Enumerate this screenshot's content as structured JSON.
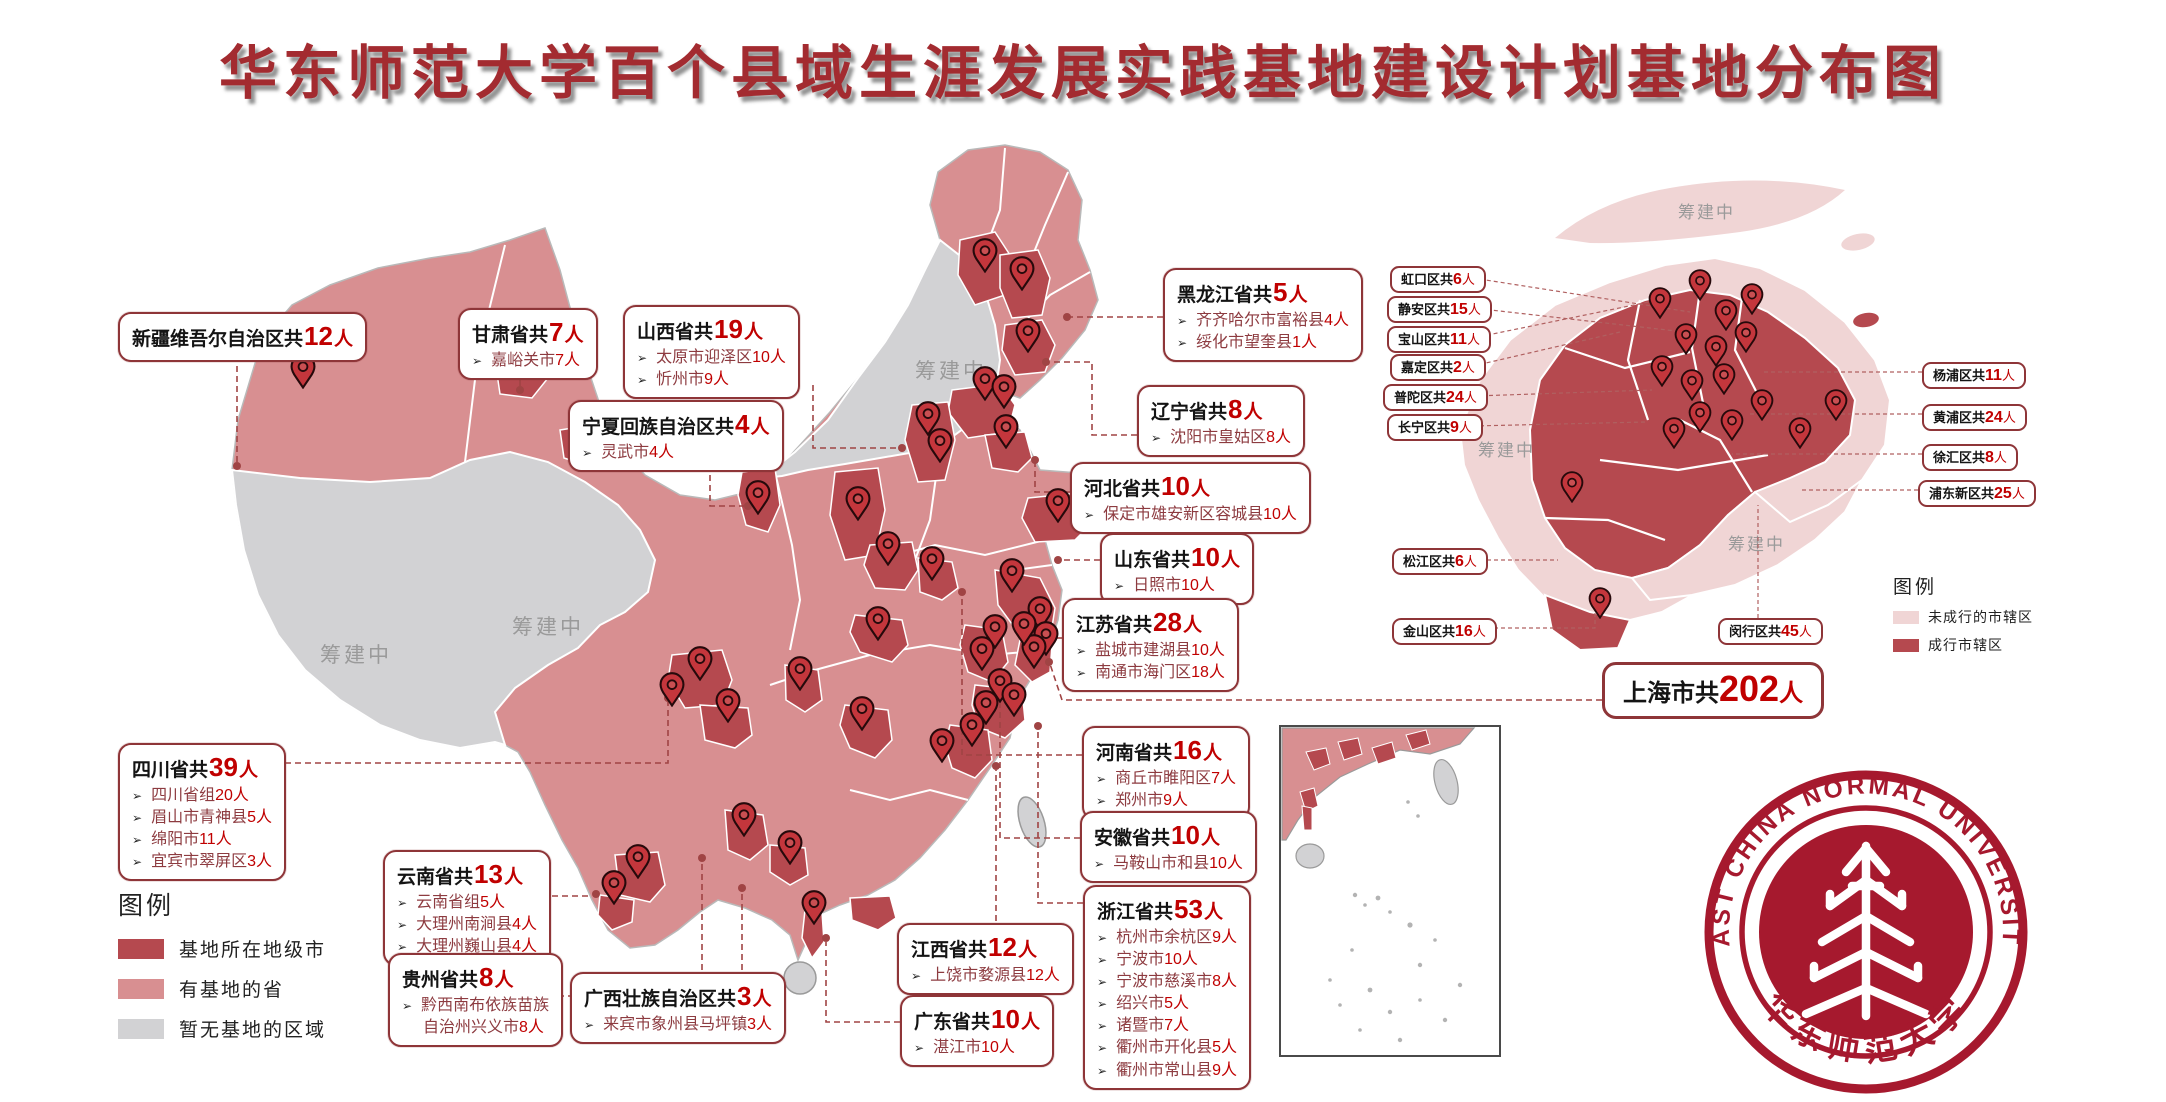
{
  "title": "华东师范大学百个县域生涯发展实践基地建设计划基地分布图",
  "join": "共",
  "suffix": "人",
  "map_labels": {
    "planning": "筹建中"
  },
  "legend_main": {
    "title": "图例",
    "items": [
      {
        "label": "基地所在地级市",
        "color": "#b5494f"
      },
      {
        "label": "有基地的省",
        "color": "#d88f91"
      },
      {
        "label": "暂无基地的区域",
        "color": "#d2d2d4"
      }
    ]
  },
  "legend_inset": {
    "title": "图例",
    "items": [
      {
        "label": "未成行的市辖区",
        "color": "#f0d5d5"
      },
      {
        "label": "成行市辖区",
        "color": "#b5494f"
      }
    ]
  },
  "callouts": [
    {
      "id": "xinjiang",
      "name": "新疆维吾尔自治区",
      "count": "12",
      "items": []
    },
    {
      "id": "gansu",
      "name": "甘肃省",
      "count": "7",
      "items": [
        "嘉峪关市7人"
      ]
    },
    {
      "id": "shanxi",
      "name": "山西省",
      "count": "19",
      "items": [
        "太原市迎泽区10人",
        "忻州市9人"
      ]
    },
    {
      "id": "ningxia",
      "name": "宁夏回族自治区",
      "count": "4",
      "items": [
        "灵武市4人"
      ]
    },
    {
      "id": "heilongjiang",
      "name": "黑龙江省",
      "count": "5",
      "items": [
        "齐齐哈尔市富裕县4人",
        "绥化市望奎县1人"
      ]
    },
    {
      "id": "liaoning",
      "name": "辽宁省",
      "count": "8",
      "items": [
        "沈阳市皇姑区8人"
      ]
    },
    {
      "id": "hebei",
      "name": "河北省",
      "count": "10",
      "items": [
        "保定市雄安新区容城县10人"
      ]
    },
    {
      "id": "shandong",
      "name": "山东省",
      "count": "10",
      "items": [
        "日照市10人"
      ]
    },
    {
      "id": "jiangsu",
      "name": "江苏省",
      "count": "28",
      "items": [
        "盐城市建湖县10人",
        "南通市海门区18人"
      ]
    },
    {
      "id": "henan",
      "name": "河南省",
      "count": "16",
      "items": [
        "商丘市睢阳区7人",
        "郑州市9人"
      ]
    },
    {
      "id": "anhui",
      "name": "安徽省",
      "count": "10",
      "items": [
        "马鞍山市和县10人"
      ]
    },
    {
      "id": "zhejiang",
      "name": "浙江省",
      "count": "53",
      "items": [
        "杭州市余杭区9人",
        "宁波市10人",
        "宁波市慈溪市8人",
        "绍兴市5人",
        "诸暨市7人",
        "衢州市开化县5人",
        "衢州市常山县9人"
      ]
    },
    {
      "id": "sichuan",
      "name": "四川省",
      "count": "39",
      "items": [
        "四川省组20人",
        "眉山市青神县5人",
        "绵阳市11人",
        "宜宾市翠屏区3人"
      ]
    },
    {
      "id": "yunnan",
      "name": "云南省",
      "count": "13",
      "items": [
        "云南省组5人",
        "大理州南涧县4人",
        "大理州巍山县4人"
      ]
    },
    {
      "id": "guizhou",
      "name": "贵州省",
      "count": "8",
      "items": [
        "黔西南布依族苗族\n自治州兴义市8人"
      ]
    },
    {
      "id": "guangxi",
      "name": "广西壮族自治区",
      "count": "3",
      "items": [
        "来宾市象州县马坪镇3人"
      ]
    },
    {
      "id": "jiangxi",
      "name": "江西省",
      "count": "12",
      "items": [
        "上饶市婺源县12人"
      ]
    },
    {
      "id": "guangdong",
      "name": "广东省",
      "count": "10",
      "items": [
        "湛江市10人"
      ]
    }
  ],
  "shanghai": {
    "total": {
      "name": "上海市",
      "count": "202"
    },
    "districts": [
      {
        "id": "hongkou",
        "name": "虹口区",
        "count": "6"
      },
      {
        "id": "jingan",
        "name": "静安区",
        "count": "15"
      },
      {
        "id": "baoshan",
        "name": "宝山区",
        "count": "11"
      },
      {
        "id": "jiading",
        "name": "嘉定区",
        "count": "2"
      },
      {
        "id": "putuo",
        "name": "普陀区",
        "count": "24"
      },
      {
        "id": "changning",
        "name": "长宁区",
        "count": "9"
      },
      {
        "id": "yangpu",
        "name": "杨浦区",
        "count": "11"
      },
      {
        "id": "huangpu",
        "name": "黄浦区",
        "count": "24"
      },
      {
        "id": "xuhui",
        "name": "徐汇区",
        "count": "8"
      },
      {
        "id": "pudong",
        "name": "浦东新区",
        "count": "25"
      },
      {
        "id": "songjiang",
        "name": "松江区",
        "count": "6"
      },
      {
        "id": "jinshan",
        "name": "金山区",
        "count": "16"
      },
      {
        "id": "minhang",
        "name": "闵行区",
        "count": "45"
      }
    ]
  },
  "logo": {
    "text_top": "EAST CHINA NORMAL UNIVERSITY",
    "text_bottom": "华东师范大学"
  }
}
